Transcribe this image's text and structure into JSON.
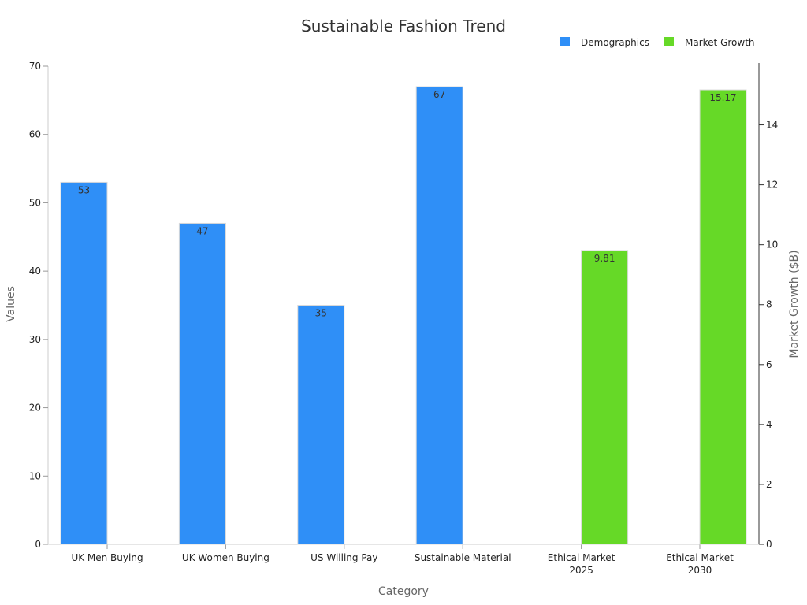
{
  "chart_data": {
    "type": "bar",
    "title": "Sustainable Fashion Trend",
    "xlabel": "Category",
    "ylabel": "Values",
    "y2label": "Market Growth ($B)",
    "categories": [
      [
        "UK Men Buying"
      ],
      [
        "UK Women Buying"
      ],
      [
        "US Willing Pay"
      ],
      [
        "Sustainable Material"
      ],
      [
        "Ethical Market",
        "2025"
      ],
      [
        "Ethical Market",
        "2030"
      ]
    ],
    "ylim": [
      0,
      70
    ],
    "yticks": [
      0,
      10,
      20,
      30,
      40,
      50,
      60,
      70
    ],
    "y2lim": [
      0,
      15.96
    ],
    "y2ticks": [
      0,
      2,
      4,
      6,
      8,
      10,
      12,
      14
    ],
    "grid": false,
    "legend_position": "top-right",
    "series": [
      {
        "name": "Demographics",
        "axis": "left",
        "color": "#2f8ff7",
        "values": [
          53,
          47,
          35,
          67,
          null,
          null
        ],
        "labels": [
          "53",
          "47",
          "35",
          "67",
          "",
          ""
        ]
      },
      {
        "name": "Market Growth",
        "axis": "right",
        "color": "#66d927",
        "values": [
          null,
          null,
          null,
          null,
          9.81,
          15.17
        ],
        "labels": [
          "",
          "",
          "",
          "",
          "9.81",
          "15.17"
        ]
      }
    ]
  }
}
